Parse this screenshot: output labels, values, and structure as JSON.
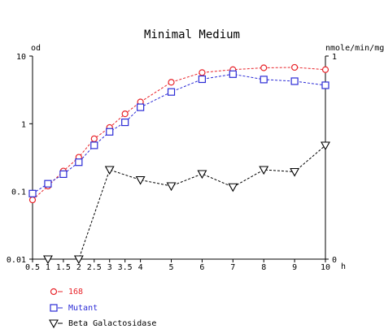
{
  "chart_data": {
    "type": "line",
    "title": "Minimal Medium",
    "left_axis": {
      "label": "od",
      "scale": "log",
      "ylim": [
        0.01,
        10
      ],
      "ticks": [
        "10",
        "1",
        "0.1",
        "0.01"
      ],
      "tick_values": [
        10,
        1,
        0.1,
        0.01
      ]
    },
    "right_axis": {
      "label": "nmole/min/mg",
      "scale": "linear",
      "ylim": [
        0,
        1
      ],
      "ticks": [
        "1",
        "0"
      ],
      "tick_values": [
        1,
        0
      ]
    },
    "x_axis": {
      "unit_label": "h",
      "xlim": [
        0.5,
        10
      ],
      "ticks": [
        "0.5",
        "1",
        "1.5",
        "2",
        "2.5",
        "3",
        "3.5",
        "4",
        "5",
        "6",
        "7",
        "8",
        "9",
        "10"
      ],
      "tick_values": [
        0.5,
        1,
        1.5,
        2,
        2.5,
        3,
        3.5,
        4,
        5,
        6,
        7,
        8,
        9,
        10
      ]
    },
    "grid": false,
    "legend_position": "bottom-left",
    "series": [
      {
        "name": "168",
        "axis": "left",
        "marker": "circle",
        "color": "#e8242a",
        "x": [
          0.5,
          1,
          1.5,
          2,
          2.5,
          3,
          3.5,
          4,
          5,
          6,
          7,
          8,
          9,
          10
        ],
        "y": [
          0.075,
          0.12,
          0.2,
          0.32,
          0.6,
          0.88,
          1.4,
          2.1,
          4.1,
          5.7,
          6.3,
          6.7,
          6.8,
          6.3
        ]
      },
      {
        "name": "Mutant",
        "axis": "left",
        "marker": "square",
        "color": "#2b2bd6",
        "x": [
          0.5,
          1,
          1.5,
          2,
          2.5,
          3,
          3.5,
          4,
          5,
          6,
          7,
          8,
          9,
          10
        ],
        "y": [
          0.093,
          0.13,
          0.18,
          0.27,
          0.48,
          0.76,
          1.05,
          1.75,
          2.95,
          4.55,
          5.4,
          4.5,
          4.25,
          3.7
        ]
      },
      {
        "name": "Beta Galactosidase",
        "axis": "right",
        "marker": "triangle-down",
        "color": "#000000",
        "x": [
          1,
          2,
          3,
          4,
          5,
          6,
          7,
          8,
          9,
          10
        ],
        "y": [
          0,
          0,
          0.44,
          0.39,
          0.36,
          0.42,
          0.355,
          0.44,
          0.43,
          0.56
        ]
      }
    ]
  }
}
